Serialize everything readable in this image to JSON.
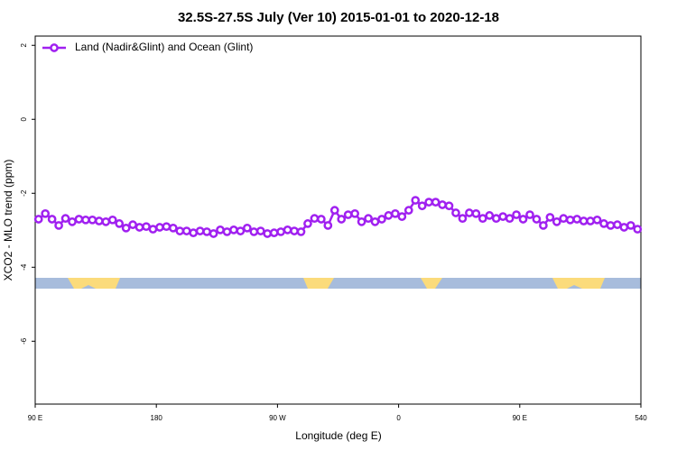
{
  "chart_data": {
    "type": "line",
    "title": "32.5S-27.5S July (Ver 10)   2015-01-01 to 2020-12-18",
    "x_label": "Longitude (deg E)",
    "y_label": "XCO2 - MLO trend (ppm)",
    "xlim": [
      90,
      540
    ],
    "xticks": [
      {
        "value": 90,
        "label": "90 E"
      },
      180,
      {
        "value": 270,
        "label": "90 W"
      },
      {
        "value": 360,
        "label": "0"
      },
      {
        "value": 450,
        "label": "90 E"
      },
      540
    ],
    "ylim": [
      -7.7,
      2.25
    ],
    "yticks": [
      2,
      0,
      -2,
      -4,
      -6
    ],
    "legend": "top-left",
    "x": [
      92.5,
      97.5,
      102.5,
      107.5,
      112.5,
      117.5,
      122.5,
      127.5,
      132.5,
      137.5,
      142.5,
      147.5,
      152.5,
      157.5,
      162.5,
      167.5,
      172.5,
      177.5,
      182.5,
      187.5,
      192.5,
      197.5,
      202.5,
      207.5,
      212.5,
      217.5,
      222.5,
      227.5,
      232.5,
      237.5,
      242.5,
      247.5,
      252.5,
      257.5,
      262.5,
      267.5,
      272.5,
      277.5,
      282.5,
      287.5,
      292.5,
      297.5,
      302.5,
      307.5,
      312.5,
      317.5,
      322.5,
      327.5,
      332.5,
      337.5,
      342.5,
      347.5,
      352.5,
      357.5,
      362.5,
      367.5,
      372.5,
      377.5,
      382.5,
      387.5,
      392.5,
      397.5,
      402.5,
      407.5,
      412.5,
      417.5,
      422.5,
      427.5,
      432.5,
      437.5,
      442.5,
      447.5,
      452.5,
      457.5,
      462.5,
      467.5,
      472.5,
      477.5,
      482.5,
      487.5,
      492.5,
      497.5,
      502.5,
      507.5,
      512.5,
      517.5,
      522.5,
      527.5,
      532.5,
      537.5
    ],
    "series": [
      {
        "name": "Land (Nadir&Glint) and Ocean (Glint)",
        "color": "#a020f0",
        "values": [
          -2.7,
          -2.55,
          -2.7,
          -2.87,
          -2.68,
          -2.77,
          -2.7,
          -2.72,
          -2.72,
          -2.75,
          -2.77,
          -2.72,
          -2.82,
          -2.94,
          -2.85,
          -2.92,
          -2.9,
          -2.97,
          -2.92,
          -2.9,
          -2.94,
          -3.02,
          -3.02,
          -3.07,
          -3.02,
          -3.04,
          -3.09,
          -2.99,
          -3.04,
          -2.99,
          -3.02,
          -2.94,
          -3.04,
          -3.02,
          -3.09,
          -3.07,
          -3.04,
          -2.99,
          -3.02,
          -3.04,
          -2.82,
          -2.68,
          -2.7,
          -2.87,
          -2.46,
          -2.7,
          -2.58,
          -2.55,
          -2.77,
          -2.68,
          -2.77,
          -2.7,
          -2.6,
          -2.55,
          -2.63,
          -2.46,
          -2.19,
          -2.34,
          -2.24,
          -2.24,
          -2.31,
          -2.34,
          -2.53,
          -2.68,
          -2.53,
          -2.55,
          -2.68,
          -2.6,
          -2.68,
          -2.63,
          -2.68,
          -2.58,
          -2.7,
          -2.58,
          -2.7,
          -2.87,
          -2.65,
          -2.77,
          -2.68,
          -2.72,
          -2.7,
          -2.75,
          -2.75,
          -2.72,
          -2.82,
          -2.87,
          -2.85,
          -2.92,
          -2.87,
          -2.97
        ]
      }
    ]
  }
}
